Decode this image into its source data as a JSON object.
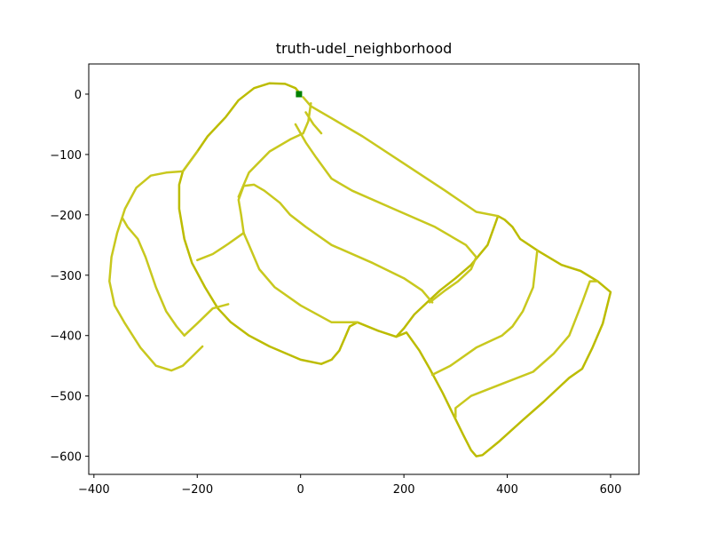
{
  "chart_data": {
    "type": "line",
    "title": "truth-udel_neighborhood",
    "xlabel": "",
    "ylabel": "",
    "xlim": [
      -410,
      655
    ],
    "ylim": [
      -630,
      50
    ],
    "x_ticks": [
      -400,
      -200,
      0,
      200,
      400,
      600
    ],
    "x_tick_labels": [
      "−400",
      "−200",
      "0",
      "200",
      "400",
      "600"
    ],
    "y_ticks": [
      0,
      -100,
      -200,
      -300,
      -400,
      -500,
      -600
    ],
    "y_tick_labels": [
      "0",
      "−100",
      "−200",
      "−300",
      "−400",
      "−500",
      "−600"
    ],
    "grid": false,
    "legend": "none",
    "colors": {
      "path": "#bcbc00",
      "path_light": "#c8c81e",
      "start_marker": "#008000",
      "axes": "#000000"
    },
    "start_marker": {
      "x": -3,
      "y": 0
    },
    "series": [
      {
        "points": [
          [
            0,
            0
          ],
          [
            -10,
            10
          ],
          [
            -30,
            17
          ],
          [
            -60,
            18
          ],
          [
            -90,
            10
          ],
          [
            -120,
            -10
          ],
          [
            -145,
            -38
          ],
          [
            -180,
            -70
          ],
          [
            -200,
            -95
          ],
          [
            -228,
            -128
          ],
          [
            -235,
            -150
          ],
          [
            -235,
            -190
          ],
          [
            -225,
            -240
          ],
          [
            -210,
            -280
          ],
          [
            -185,
            -320
          ],
          [
            -160,
            -355
          ],
          [
            -135,
            -378
          ],
          [
            -100,
            -400
          ],
          [
            -60,
            -418
          ],
          [
            0,
            -440
          ],
          [
            40,
            -447
          ],
          [
            60,
            -440
          ],
          [
            75,
            -425
          ],
          [
            85,
            -405
          ],
          [
            95,
            -385
          ],
          [
            110,
            -378
          ],
          [
            150,
            -392
          ],
          [
            185,
            -402
          ],
          [
            200,
            -388
          ],
          [
            220,
            -365
          ],
          [
            245,
            -345
          ],
          [
            270,
            -325
          ],
          [
            300,
            -305
          ],
          [
            330,
            -283
          ],
          [
            362,
            -250
          ],
          [
            378,
            -212
          ],
          [
            382,
            -202
          ],
          [
            395,
            -208
          ],
          [
            410,
            -220
          ],
          [
            425,
            -240
          ],
          [
            460,
            -260
          ],
          [
            505,
            -283
          ],
          [
            542,
            -293
          ],
          [
            575,
            -310
          ],
          [
            600,
            -328
          ],
          [
            585,
            -380
          ],
          [
            565,
            -420
          ],
          [
            545,
            -455
          ],
          [
            520,
            -470
          ],
          [
            470,
            -510
          ],
          [
            430,
            -540
          ],
          [
            385,
            -575
          ],
          [
            352,
            -598
          ],
          [
            340,
            -600
          ],
          [
            330,
            -590
          ],
          [
            315,
            -565
          ],
          [
            295,
            -530
          ],
          [
            275,
            -495
          ],
          [
            250,
            -455
          ],
          [
            230,
            -425
          ],
          [
            205,
            -395
          ],
          [
            185,
            -402
          ]
        ]
      },
      {
        "points": [
          [
            5,
            -5
          ],
          [
            20,
            -20
          ],
          [
            60,
            -40
          ],
          [
            120,
            -70
          ],
          [
            200,
            -115
          ],
          [
            280,
            -160
          ],
          [
            340,
            -195
          ],
          [
            382,
            -202
          ]
        ]
      },
      {
        "points": [
          [
            -200,
            -95
          ],
          [
            -228,
            -128
          ],
          [
            -260,
            -130
          ],
          [
            -290,
            -135
          ],
          [
            -318,
            -155
          ],
          [
            -340,
            -190
          ],
          [
            -355,
            -230
          ],
          [
            -366,
            -270
          ],
          [
            -370,
            -310
          ],
          [
            -360,
            -350
          ],
          [
            -340,
            -380
          ],
          [
            -310,
            -420
          ],
          [
            -280,
            -450
          ],
          [
            -250,
            -458
          ],
          [
            -228,
            -450
          ],
          [
            -210,
            -435
          ],
          [
            -190,
            -418
          ]
        ]
      },
      {
        "points": [
          [
            -345,
            -205
          ],
          [
            -335,
            -220
          ],
          [
            -315,
            -240
          ],
          [
            -300,
            -270
          ],
          [
            -280,
            -320
          ],
          [
            -260,
            -360
          ],
          [
            -240,
            -385
          ],
          [
            -225,
            -400
          ]
        ]
      },
      {
        "points": [
          [
            -225,
            -400
          ],
          [
            -200,
            -380
          ],
          [
            -170,
            -355
          ],
          [
            -140,
            -348
          ]
        ]
      },
      {
        "points": [
          [
            -200,
            -275
          ],
          [
            -170,
            -265
          ],
          [
            -140,
            -248
          ],
          [
            -110,
            -230
          ]
        ]
      },
      {
        "points": [
          [
            -110,
            -230
          ],
          [
            -115,
            -200
          ],
          [
            -120,
            -175
          ],
          [
            -110,
            -152
          ],
          [
            -90,
            -150
          ],
          [
            -70,
            -160
          ],
          [
            -40,
            -180
          ],
          [
            -20,
            -200
          ],
          [
            10,
            -220
          ],
          [
            60,
            -250
          ],
          [
            140,
            -280
          ],
          [
            200,
            -305
          ],
          [
            235,
            -325
          ],
          [
            255,
            -345
          ]
        ]
      },
      {
        "points": [
          [
            -110,
            -230
          ],
          [
            -100,
            -250
          ],
          [
            -80,
            -290
          ],
          [
            -50,
            -320
          ],
          [
            0,
            -350
          ],
          [
            60,
            -378
          ],
          [
            110,
            -378
          ]
        ]
      },
      {
        "points": [
          [
            -120,
            -170
          ],
          [
            -100,
            -130
          ],
          [
            -60,
            -95
          ],
          [
            -20,
            -75
          ],
          [
            5,
            -65
          ],
          [
            15,
            -45
          ],
          [
            20,
            -15
          ]
        ]
      },
      {
        "points": [
          [
            -10,
            -50
          ],
          [
            10,
            -80
          ],
          [
            30,
            -105
          ],
          [
            60,
            -140
          ],
          [
            100,
            -160
          ],
          [
            180,
            -190
          ],
          [
            260,
            -220
          ],
          [
            320,
            -250
          ],
          [
            340,
            -270
          ],
          [
            330,
            -290
          ],
          [
            305,
            -310
          ],
          [
            280,
            -325
          ],
          [
            250,
            -345
          ]
        ]
      },
      {
        "points": [
          [
            10,
            -30
          ],
          [
            25,
            -50
          ],
          [
            35,
            -60
          ],
          [
            40,
            -65
          ]
        ]
      },
      {
        "points": [
          [
            255,
            -465
          ],
          [
            290,
            -450
          ],
          [
            340,
            -420
          ],
          [
            390,
            -400
          ],
          [
            410,
            -385
          ],
          [
            430,
            -360
          ],
          [
            450,
            -320
          ],
          [
            458,
            -260
          ]
        ]
      },
      {
        "points": [
          [
            300,
            -535
          ],
          [
            300,
            -520
          ],
          [
            330,
            -500
          ],
          [
            390,
            -480
          ],
          [
            450,
            -460
          ],
          [
            490,
            -430
          ],
          [
            520,
            -400
          ],
          [
            545,
            -345
          ],
          [
            560,
            -310
          ],
          [
            575,
            -310
          ]
        ]
      }
    ]
  }
}
